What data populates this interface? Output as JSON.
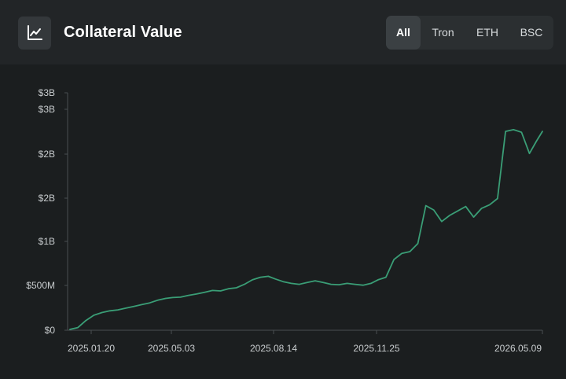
{
  "header": {
    "title": "Collateral Value",
    "icon": "line-chart-icon",
    "tabs": [
      {
        "label": "All",
        "active": true
      },
      {
        "label": "Tron",
        "active": false
      },
      {
        "label": "ETH",
        "active": false
      },
      {
        "label": "BSC",
        "active": false
      }
    ]
  },
  "colors": {
    "background": "#1b1e1f",
    "header": "#222527",
    "line": "#3a9e76",
    "axis": "#4a4f52",
    "tick_text": "#c9cdcf"
  },
  "chart_data": {
    "type": "line",
    "title": "",
    "xlabel": "",
    "ylabel": "",
    "y_tick_labels": [
      "$0",
      "$500M",
      "$1B",
      "$2B",
      "$2B",
      "$3B",
      "$3B"
    ],
    "x_tick_labels": [
      "2025.01.20",
      "2025.05.03",
      "2025.08.14",
      "2025.11.25",
      "2026.05.09"
    ],
    "ylim": [
      0,
      2750000000
    ],
    "grid": false,
    "series": [
      {
        "x": [
          "2025.01.20",
          "2025.01.28",
          "2025.02.05",
          "2025.02.13",
          "2025.02.21",
          "2025.03.01",
          "2025.03.09",
          "2025.03.17",
          "2025.03.25",
          "2025.04.02",
          "2025.04.10",
          "2025.04.18",
          "2025.04.26",
          "2025.05.03",
          "2025.05.11",
          "2025.05.19",
          "2025.05.27",
          "2025.06.04",
          "2025.06.12",
          "2025.06.20",
          "2025.06.28",
          "2025.07.06",
          "2025.07.14",
          "2025.07.22",
          "2025.07.30",
          "2025.08.07",
          "2025.08.14",
          "2025.08.22",
          "2025.08.30",
          "2025.09.07",
          "2025.09.15",
          "2025.09.23",
          "2025.10.01",
          "2025.10.09",
          "2025.10.17",
          "2025.10.25",
          "2025.11.02",
          "2025.11.10",
          "2025.11.18",
          "2025.11.25",
          "2025.12.03",
          "2025.12.11",
          "2025.12.19",
          "2025.12.27",
          "2026.01.04",
          "2026.01.12",
          "2026.01.20",
          "2026.01.28",
          "2026.02.05",
          "2026.02.13",
          "2026.02.21",
          "2026.03.01",
          "2026.03.09",
          "2026.03.17",
          "2026.03.25",
          "2026.04.02",
          "2026.04.10",
          "2026.04.18",
          "2026.04.26",
          "2026.05.03",
          "2026.05.09"
        ],
        "values": [
          10000000,
          30000000,
          110000000,
          170000000,
          200000000,
          220000000,
          230000000,
          250000000,
          270000000,
          290000000,
          310000000,
          340000000,
          360000000,
          370000000,
          375000000,
          395000000,
          410000000,
          430000000,
          450000000,
          445000000,
          470000000,
          480000000,
          520000000,
          570000000,
          600000000,
          610000000,
          580000000,
          550000000,
          530000000,
          520000000,
          540000000,
          560000000,
          540000000,
          520000000,
          515000000,
          530000000,
          520000000,
          510000000,
          530000000,
          570000000,
          600000000,
          800000000,
          870000000,
          890000000,
          980000000,
          1410000000,
          1360000000,
          1230000000,
          1300000000,
          1350000000,
          1400000000,
          1280000000,
          1380000000,
          1420000000,
          1490000000,
          2250000000,
          2270000000,
          2240000000,
          2000000000,
          2140000000,
          2250000000
        ]
      }
    ]
  }
}
